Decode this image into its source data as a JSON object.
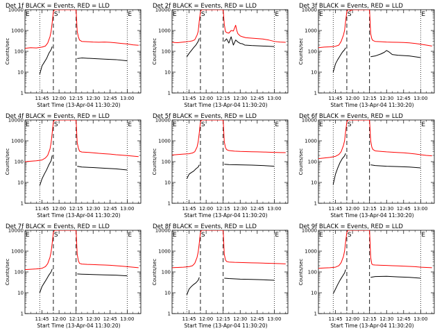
{
  "chart_data": {
    "type": "line",
    "yscale": "log",
    "ylim": [
      1,
      10000
    ],
    "y_ticks": [
      "1",
      "10",
      "100",
      "1000",
      "10000"
    ],
    "x_ticks": [
      "11:45",
      "12:00",
      "12:15",
      "12:30",
      "12:45",
      "13:00"
    ],
    "x_tick_minutes": [
      15,
      30,
      45,
      60,
      75,
      90
    ],
    "xlim_minutes": [
      0,
      102
    ],
    "ylabel": "Counts/sec",
    "xlabel": "Start Time (13-Apr-04 11:30:20)",
    "legend_text": "BLACK = Events, RED = LLD",
    "markers": {
      "dotted_left": 13,
      "dashed_s_start": 25,
      "dashed_s_end": 45,
      "dotted_right": 90
    },
    "marker_labels": {
      "left": "E",
      "s": "S",
      "right": "E"
    },
    "panels": [
      {
        "title": "Det 1f BLACK = Events, RED = LLD",
        "series": [
          {
            "name": "BLACK = Events",
            "color": "#000000",
            "x": [
              13,
              15,
              17,
              19,
              21,
              23,
              24,
              46,
              50,
              60,
              70,
              80,
              90
            ],
            "values": [
              8,
              20,
              30,
              45,
              80,
              120,
              170,
              45,
              48,
              45,
              42,
              40,
              35
            ]
          },
          {
            "name": "RED = LLD",
            "color": "#ff0000",
            "x": [
              0,
              5,
              10,
              15,
              18,
              20,
              22,
              23,
              24,
              25,
              26,
              45,
              46,
              47,
              48,
              50,
              55,
              60,
              65,
              70,
              75,
              80,
              85,
              90,
              95,
              100
            ],
            "values": [
              140,
              150,
              145,
              160,
              180,
              250,
              500,
              900,
              2500,
              8000,
              12000,
              12000,
              900,
              500,
              350,
              300,
              290,
              280,
              275,
              280,
              270,
              255,
              240,
              225,
              205,
              195
            ]
          }
        ]
      },
      {
        "title": "Det 2f BLACK = Events, RED = LLD",
        "series": [
          {
            "name": "BLACK = Events",
            "color": "#000000",
            "x": [
              13,
              15,
              17,
              19,
              21,
              23,
              24,
              46,
              48,
              50,
              52,
              54,
              56,
              58,
              60,
              62,
              64,
              70,
              80,
              90
            ],
            "values": [
              55,
              80,
              110,
              150,
              200,
              300,
              420,
              300,
              400,
              250,
              500,
              200,
              350,
              280,
              240,
              230,
              200,
              190,
              180,
              170
            ]
          },
          {
            "name": "RED = LLD",
            "color": "#ff0000",
            "x": [
              0,
              5,
              10,
              15,
              18,
              20,
              22,
              23,
              24,
              25,
              26,
              45,
              46,
              47,
              48,
              50,
              52,
              54,
              55,
              56,
              57,
              58,
              60,
              62,
              65,
              70,
              75,
              80,
              85,
              90,
              95,
              100
            ],
            "values": [
              270,
              260,
              280,
              300,
              320,
              360,
              600,
              900,
              3000,
              8000,
              12000,
              12000,
              2000,
              900,
              800,
              750,
              1000,
              950,
              1300,
              1800,
              1000,
              700,
              550,
              500,
              450,
              430,
              410,
              390,
              350,
              300,
              280,
              270
            ]
          }
        ]
      },
      {
        "title": "Det 3f BLACK = Events, RED = LLD",
        "series": [
          {
            "name": "BLACK = Events",
            "color": "#000000",
            "x": [
              13,
              15,
              17,
              19,
              21,
              23,
              24,
              46,
              50,
              55,
              58,
              60,
              62,
              65,
              70,
              80,
              90
            ],
            "values": [
              10,
              25,
              40,
              60,
              90,
              120,
              150,
              55,
              60,
              75,
              90,
              110,
              95,
              70,
              65,
              60,
              50
            ]
          },
          {
            "name": "RED = LLD",
            "color": "#ff0000",
            "x": [
              0,
              5,
              10,
              15,
              18,
              20,
              22,
              23,
              24,
              25,
              26,
              27,
              28,
              30,
              32,
              45,
              46,
              47,
              48,
              50,
              55,
              60,
              65,
              70,
              75,
              80,
              85,
              90,
              95,
              100
            ],
            "values": [
              150,
              160,
              165,
              175,
              200,
              300,
              600,
              1000,
              3000,
              8000,
              12000,
              12000,
              9000,
              12000,
              12000,
              12000,
              700,
              400,
              330,
              300,
              290,
              280,
              275,
              270,
              265,
              255,
              240,
              220,
              200,
              180
            ]
          }
        ]
      },
      {
        "title": "Det 4f BLACK = Events, RED = LLD",
        "series": [
          {
            "name": "BLACK = Events",
            "color": "#000000",
            "x": [
              13,
              15,
              17,
              19,
              21,
              23,
              24,
              46,
              50,
              60,
              70,
              80,
              90
            ],
            "values": [
              7,
              15,
              25,
              40,
              70,
              110,
              200,
              60,
              55,
              52,
              48,
              45,
              40
            ]
          },
          {
            "name": "RED = LLD",
            "color": "#ff0000",
            "x": [
              0,
              5,
              10,
              15,
              18,
              20,
              22,
              23,
              24,
              25,
              26,
              45,
              46,
              47,
              48,
              50,
              55,
              60,
              65,
              70,
              75,
              80,
              85,
              90,
              95,
              100
            ],
            "values": [
              100,
              105,
              110,
              120,
              150,
              200,
              400,
              800,
              2500,
              8000,
              12000,
              12000,
              800,
              450,
              320,
              290,
              280,
              265,
              250,
              240,
              230,
              215,
              205,
              195,
              185,
              175
            ]
          }
        ]
      },
      {
        "title": "Det 5f BLACK = Events, RED = LLD",
        "series": [
          {
            "name": "BLACK = Events",
            "color": "#000000",
            "x": [
              13,
              15,
              17,
              19,
              21,
              23,
              24,
              46,
              50,
              60,
              70,
              80,
              90
            ],
            "values": [
              15,
              25,
              30,
              35,
              45,
              55,
              70,
              75,
              72,
              70,
              68,
              65,
              60
            ]
          },
          {
            "name": "RED = LLD",
            "color": "#ff0000",
            "x": [
              0,
              5,
              10,
              15,
              18,
              20,
              22,
              23,
              24,
              25,
              26,
              45,
              46,
              47,
              48,
              50,
              55,
              60,
              65,
              70,
              75,
              80,
              85,
              90,
              95,
              100
            ],
            "values": [
              210,
              220,
              230,
              240,
              260,
              300,
              500,
              900,
              2500,
              8000,
              12000,
              12000,
              900,
              480,
              380,
              340,
              320,
              310,
              305,
              300,
              295,
              290,
              285,
              280,
              275,
              270
            ]
          }
        ]
      },
      {
        "title": "Det 6f BLACK = Events, RED = LLD",
        "series": [
          {
            "name": "BLACK = Events",
            "color": "#000000",
            "x": [
              13,
              15,
              17,
              19,
              21,
              23,
              24,
              46,
              50,
              60,
              70,
              80,
              90
            ],
            "values": [
              8,
              25,
              50,
              90,
              140,
              190,
              250,
              70,
              65,
              60,
              58,
              55,
              50
            ]
          },
          {
            "name": "RED = LLD",
            "color": "#ff0000",
            "x": [
              0,
              5,
              10,
              15,
              18,
              20,
              22,
              23,
              24,
              25,
              26,
              45,
              46,
              47,
              48,
              50,
              55,
              60,
              65,
              70,
              75,
              80,
              85,
              90,
              95,
              100
            ],
            "values": [
              140,
              150,
              160,
              180,
              220,
              300,
              600,
              1000,
              3000,
              8000,
              12000,
              12000,
              1000,
              500,
              380,
              330,
              310,
              295,
              285,
              275,
              265,
              250,
              235,
              215,
              200,
              190
            ]
          }
        ]
      },
      {
        "title": "Det 7f BLACK = Events, RED = LLD",
        "series": [
          {
            "name": "BLACK = Events",
            "color": "#000000",
            "x": [
              13,
              15,
              17,
              19,
              21,
              23,
              24,
              46,
              50,
              60,
              70,
              80,
              90
            ],
            "values": [
              10,
              20,
              30,
              45,
              70,
              100,
              140,
              80,
              78,
              75,
              72,
              70,
              65
            ]
          },
          {
            "name": "RED = LLD",
            "color": "#ff0000",
            "x": [
              0,
              5,
              10,
              15,
              18,
              20,
              22,
              23,
              24,
              25,
              26,
              45,
              46,
              47,
              48,
              50,
              55,
              60,
              65,
              70,
              75,
              80,
              85,
              90,
              95,
              100
            ],
            "values": [
              130,
              135,
              140,
              150,
              180,
              250,
              500,
              900,
              2500,
              8000,
              12000,
              12000,
              700,
              350,
              260,
              240,
              230,
              225,
              220,
              215,
              210,
              200,
              190,
              180,
              170,
              160
            ]
          }
        ]
      },
      {
        "title": "Det 8f BLACK = Events, RED = LLD",
        "series": [
          {
            "name": "BLACK = Events",
            "color": "#000000",
            "x": [
              13,
              15,
              17,
              19,
              21,
              23,
              24,
              46,
              50,
              60,
              70,
              80,
              90
            ],
            "values": [
              8,
              15,
              20,
              25,
              30,
              40,
              55,
              50,
              48,
              45,
              44,
              42,
              40
            ]
          },
          {
            "name": "RED = LLD",
            "color": "#ff0000",
            "x": [
              0,
              5,
              10,
              15,
              18,
              20,
              22,
              23,
              24,
              25,
              26,
              45,
              46,
              47,
              48,
              50,
              55,
              60,
              65,
              70,
              75,
              80,
              85,
              90,
              95,
              100
            ],
            "values": [
              160,
              165,
              170,
              180,
              200,
              260,
              500,
              900,
              2500,
              8000,
              12000,
              12000,
              700,
              380,
              320,
              300,
              290,
              285,
              280,
              275,
              270,
              265,
              260,
              255,
              250,
              245
            ]
          }
        ]
      },
      {
        "title": "Det 9f BLACK = Events, RED = LLD",
        "series": [
          {
            "name": "BLACK = Events",
            "color": "#000000",
            "x": [
              13,
              15,
              17,
              19,
              21,
              23,
              24,
              46,
              50,
              60,
              70,
              80,
              90
            ],
            "values": [
              9,
              15,
              25,
              40,
              60,
              90,
              130,
              55,
              60,
              62,
              58,
              55,
              50
            ]
          },
          {
            "name": "RED = LLD",
            "color": "#ff0000",
            "x": [
              0,
              5,
              10,
              15,
              18,
              20,
              22,
              23,
              24,
              25,
              26,
              45,
              46,
              47,
              48,
              50,
              55,
              60,
              65,
              70,
              75,
              80,
              85,
              90,
              95,
              100
            ],
            "values": [
              150,
              155,
              160,
              170,
              200,
              280,
              550,
              1000,
              3000,
              8000,
              12000,
              12000,
              500,
              240,
              220,
              215,
              210,
              205,
              200,
              195,
              190,
              185,
              180,
              170,
              165,
              160
            ]
          }
        ]
      }
    ]
  }
}
